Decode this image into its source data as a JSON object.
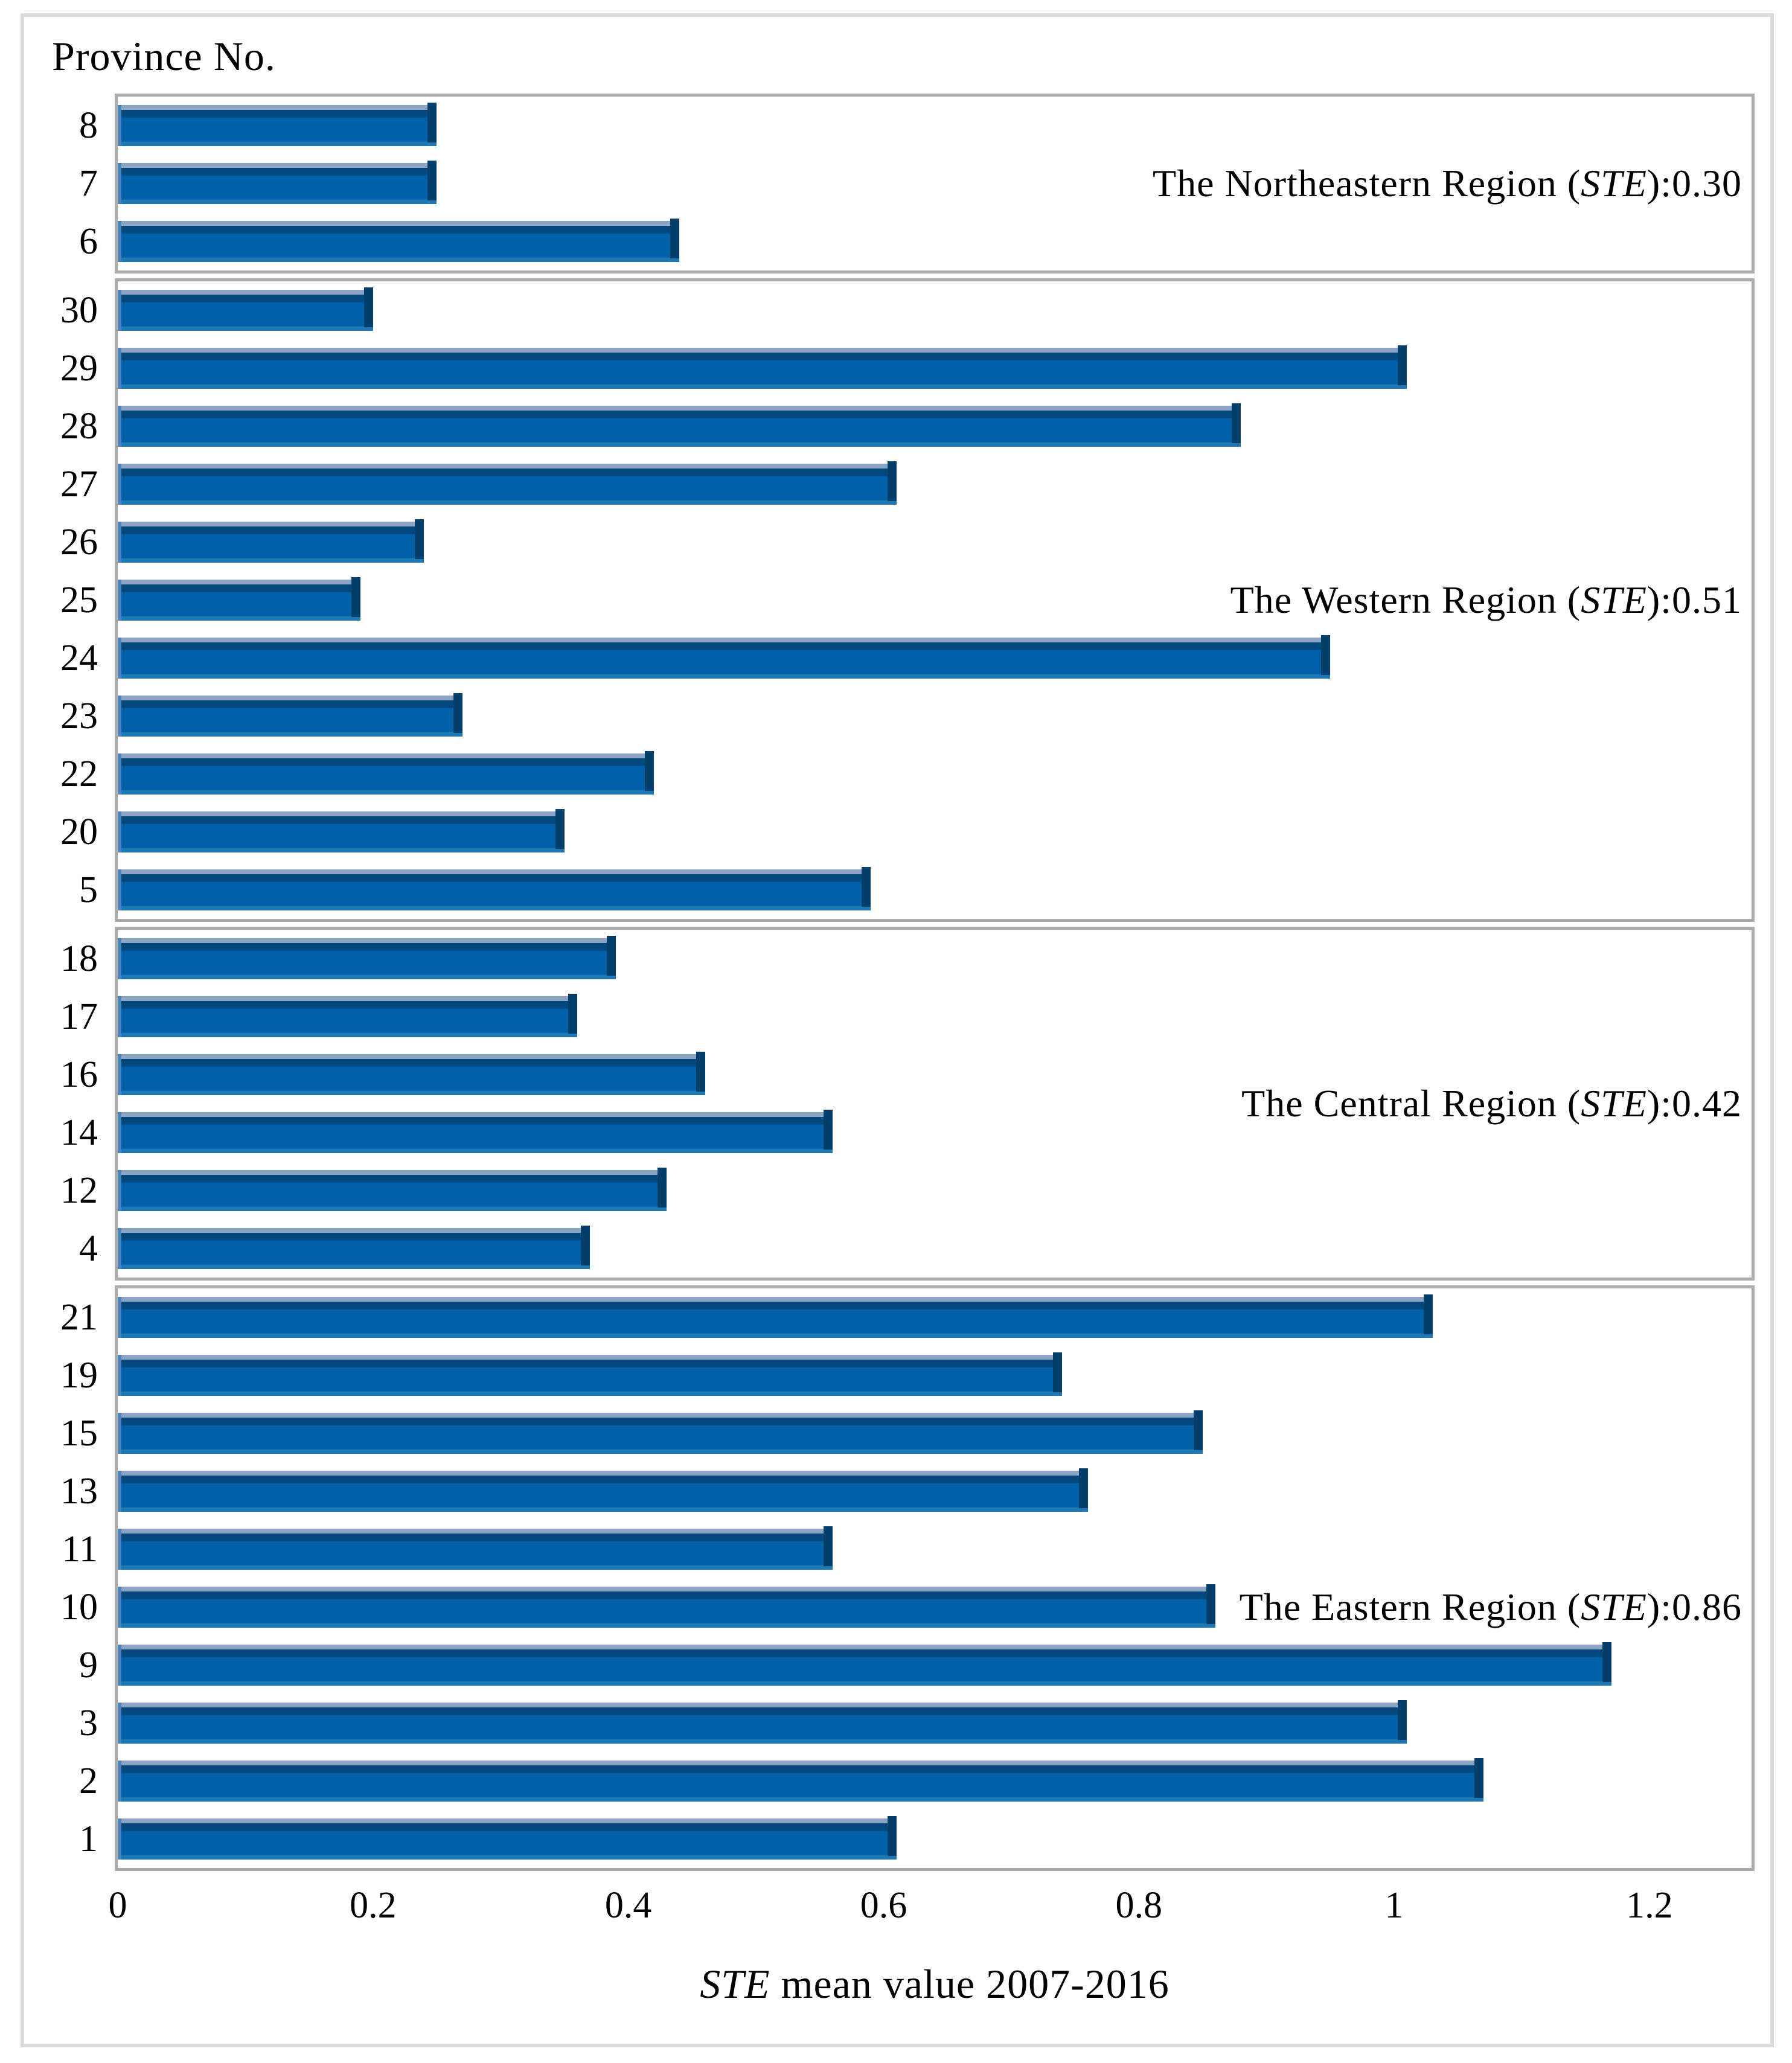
{
  "figure": {
    "background": "#FFFFFF",
    "outer_border_color": "#DBDBDB",
    "panel_border_color": "#ABABAB"
  },
  "chart_data": {
    "type": "bar",
    "orientation": "horizontal",
    "ylabel": "Province No.",
    "xlabel_italic": "STE",
    "xlabel_rest": " mean value 2007-2016",
    "xlim": [
      0,
      1.28
    ],
    "x_ticks": [
      "0",
      "0.2",
      "0.4",
      "0.6",
      "0.8",
      "1",
      "1.2"
    ],
    "x_tick_values": [
      0,
      0.2,
      0.4,
      0.6,
      0.8,
      1,
      1.2
    ],
    "grid": false,
    "legend": "none",
    "colors": {
      "bar_main": "#0061A9",
      "bar_top_dark": "#03497E",
      "bar_top_light": "#8CA5C6",
      "bar_bottom": "#1E78B2",
      "bar_right_edge": "#033F6A",
      "bar_left_edge": "#4E86B9"
    },
    "groups": [
      {
        "name": "northeastern",
        "region": "The Northeastern Region",
        "ste_mean": 0.3,
        "label_pre": "The Northeastern Region (",
        "label_italic": "STE",
        "label_post": "):0.30",
        "provinces": [
          "8",
          "7",
          "6"
        ],
        "values": [
          0.25,
          0.25,
          0.44
        ]
      },
      {
        "name": "western",
        "region": "The Western Region",
        "ste_mean": 0.51,
        "label_pre": "The Western Region (",
        "label_italic": "STE",
        "label_post": "):0.51",
        "provinces": [
          "30",
          "29",
          "28",
          "27",
          "26",
          "25",
          "24",
          "23",
          "22",
          "20",
          "5"
        ],
        "values": [
          0.2,
          1.01,
          0.88,
          0.61,
          0.24,
          0.19,
          0.95,
          0.27,
          0.42,
          0.35,
          0.59
        ]
      },
      {
        "name": "central",
        "region": "The Central Region",
        "ste_mean": 0.42,
        "label_pre": "The Central Region (",
        "label_italic": "STE",
        "label_post": "):0.42",
        "provinces": [
          "18",
          "17",
          "16",
          "14",
          "12",
          "4"
        ],
        "values": [
          0.39,
          0.36,
          0.46,
          0.56,
          0.43,
          0.37
        ]
      },
      {
        "name": "eastern",
        "region": "The Eastern Region",
        "ste_mean": 0.86,
        "label_pre": "The Eastern Region (",
        "label_italic": "STE",
        "label_post": "):0.86",
        "provinces": [
          "21",
          "19",
          "15",
          "13",
          "11",
          "10",
          "9",
          "3",
          "2",
          "1"
        ],
        "values": [
          1.03,
          0.74,
          0.85,
          0.76,
          0.56,
          0.86,
          1.17,
          1.01,
          1.07,
          0.61
        ]
      }
    ]
  }
}
